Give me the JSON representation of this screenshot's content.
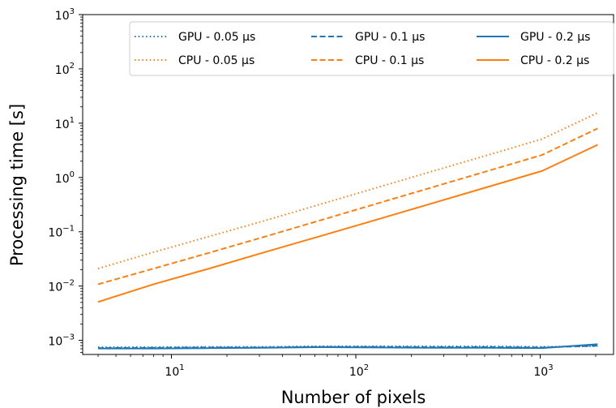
{
  "chart_data": {
    "type": "line",
    "title": "",
    "xlabel": "Number of pixels",
    "ylabel": "Processing time [s]",
    "xscale": "log",
    "yscale": "log",
    "xlim": [
      3.3,
      2500
    ],
    "ylim": [
      0.00055,
      1000
    ],
    "grid": false,
    "legend_position": "top-right",
    "legend_columns": 3,
    "x_ticks": [
      {
        "value": 10,
        "base": "10",
        "exp": "1"
      },
      {
        "value": 100,
        "base": "10",
        "exp": "2"
      },
      {
        "value": 1000,
        "base": "10",
        "exp": "3"
      }
    ],
    "y_ticks": [
      {
        "value": 0.001,
        "base": "10",
        "exp": "−3"
      },
      {
        "value": 0.01,
        "base": "10",
        "exp": "−2"
      },
      {
        "value": 0.1,
        "base": "10",
        "exp": "−1"
      },
      {
        "value": 1,
        "base": "10",
        "exp": "0"
      },
      {
        "value": 10,
        "base": "10",
        "exp": "1"
      },
      {
        "value": 100,
        "base": "10",
        "exp": "2"
      },
      {
        "value": 1000,
        "base": "10",
        "exp": "3"
      }
    ],
    "x": [
      4,
      8,
      16,
      32,
      64,
      128,
      256,
      512,
      1024,
      2048
    ],
    "series": [
      {
        "name": "GPU - 0.05 μs",
        "color": "#1f77b4",
        "style": "dotted",
        "values": [
          0.00075,
          0.00075,
          0.00076,
          0.00076,
          0.00078,
          0.00078,
          0.00078,
          0.00078,
          0.00076,
          0.00078
        ]
      },
      {
        "name": "GPU - 0.1 μs",
        "color": "#1f77b4",
        "style": "dashed",
        "values": [
          0.00072,
          0.00073,
          0.00074,
          0.00074,
          0.00076,
          0.00076,
          0.00075,
          0.00075,
          0.00074,
          0.0008
        ]
      },
      {
        "name": "GPU - 0.2 μs",
        "color": "#1f77b4",
        "style": "solid",
        "values": [
          0.00071,
          0.00071,
          0.00072,
          0.00073,
          0.00075,
          0.00074,
          0.00073,
          0.00073,
          0.00072,
          0.00085
        ]
      },
      {
        "name": "CPU - 0.05 μs",
        "color": "#ff7f0e",
        "style": "dotted",
        "values": [
          0.021,
          0.042,
          0.082,
          0.16,
          0.32,
          0.64,
          1.28,
          2.55,
          5.1,
          15.5
        ]
      },
      {
        "name": "CPU - 0.1 μs",
        "color": "#ff7f0e",
        "style": "dashed",
        "values": [
          0.0108,
          0.021,
          0.041,
          0.081,
          0.162,
          0.325,
          0.65,
          1.3,
          2.6,
          8.0
        ]
      },
      {
        "name": "CPU - 0.2 μs",
        "color": "#ff7f0e",
        "style": "solid",
        "values": [
          0.0051,
          0.0108,
          0.021,
          0.042,
          0.083,
          0.165,
          0.33,
          0.66,
          1.32,
          4.0
        ]
      }
    ]
  }
}
